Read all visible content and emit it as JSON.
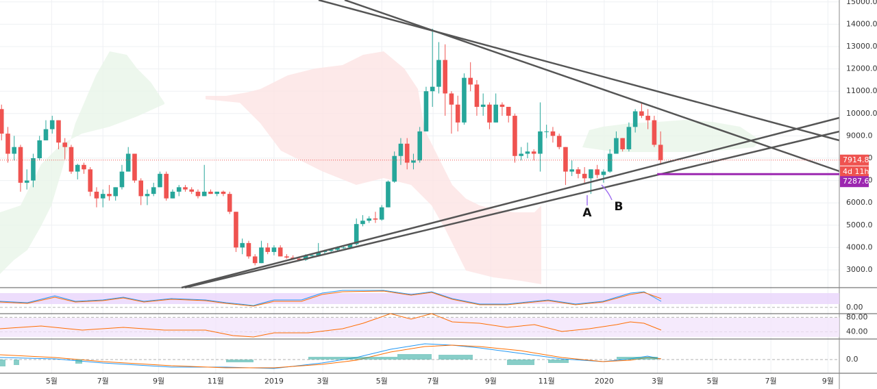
{
  "chart_data": {
    "type": "candlestick",
    "up_color": "#26a69a",
    "down_color": "#ef5350",
    "grid": true,
    "xlim": [
      -0.24,
      132.2
    ],
    "ylim": [
      2202,
      15086
    ],
    "yticks": [
      {
        "value": 3000,
        "label": "3000.0"
      },
      {
        "value": 4000,
        "label": "4000.0"
      },
      {
        "value": 5000,
        "label": "5000.0"
      },
      {
        "value": 6000,
        "label": "6000.0"
      },
      {
        "value": 7000,
        "label": "7000.0"
      },
      {
        "value": 8000,
        "label": "8000.0"
      },
      {
        "value": 9000,
        "label": "9000.0"
      },
      {
        "value": 10000,
        "label": "10000.0"
      },
      {
        "value": 11000,
        "label": "11000.0"
      },
      {
        "value": 12000,
        "label": "12000.0"
      },
      {
        "value": 13000,
        "label": "13000.0"
      },
      {
        "value": 14000,
        "label": "14000.0"
      },
      {
        "value": 15000,
        "label": "15000.0"
      }
    ],
    "xticks": [
      {
        "value": 7.9,
        "label": "5월"
      },
      {
        "value": 16.0,
        "label": "7월"
      },
      {
        "value": 24.8,
        "label": "9월"
      },
      {
        "value": 33.8,
        "label": "11월"
      },
      {
        "value": 43,
        "label": "2019"
      },
      {
        "value": 50.7,
        "label": "3월"
      },
      {
        "value": 60.0,
        "label": "5월"
      },
      {
        "value": 68.1,
        "label": "7월"
      },
      {
        "value": 77.2,
        "label": "9월"
      },
      {
        "value": 86.0,
        "label": "11월"
      },
      {
        "value": 95.1,
        "label": "2020"
      },
      {
        "value": 103.5,
        "label": "3월"
      },
      {
        "value": 112.2,
        "label": "5월"
      },
      {
        "value": 121.4,
        "label": "7월"
      },
      {
        "value": 130.4,
        "label": "9월"
      }
    ],
    "candles": [
      [
        10200,
        10400,
        8800,
        9100
      ],
      [
        9100,
        9400,
        7800,
        8200
      ],
      [
        8200,
        9000,
        7900,
        8500
      ],
      [
        8500,
        8600,
        6500,
        6900
      ],
      [
        6900,
        7500,
        6600,
        7000
      ],
      [
        7000,
        8200,
        6700,
        8000
      ],
      [
        8000,
        9000,
        7900,
        8800
      ],
      [
        8800,
        9700,
        8800,
        9300
      ],
      [
        9300,
        9900,
        9100,
        9700
      ],
      [
        9700,
        9700,
        8400,
        8700
      ],
      [
        8700,
        8900,
        7950,
        8500
      ],
      [
        8500,
        8600,
        7300,
        7400
      ],
      [
        7400,
        7750,
        7050,
        7700
      ],
      [
        7700,
        7800,
        7300,
        7500
      ],
      [
        7500,
        7600,
        6300,
        6500
      ],
      [
        6500,
        6700,
        5800,
        6200
      ],
      [
        6200,
        6600,
        5800,
        6400
      ],
      [
        6400,
        6800,
        6100,
        6300
      ],
      [
        6300,
        6700,
        6100,
        6700
      ],
      [
        6700,
        7700,
        6600,
        7400
      ],
      [
        7400,
        8500,
        7400,
        8200
      ],
      [
        8200,
        8200,
        6900,
        7000
      ],
      [
        7000,
        7100,
        5900,
        6300
      ],
      [
        6300,
        6600,
        5900,
        6400
      ],
      [
        6400,
        6900,
        6300,
        6700
      ],
      [
        6700,
        7400,
        6700,
        7300
      ],
      [
        7300,
        7400,
        6100,
        6200
      ],
      [
        6200,
        6600,
        6200,
        6500
      ],
      [
        6500,
        6800,
        6300,
        6700
      ],
      [
        6700,
        6800,
        6500,
        6600
      ],
      [
        6600,
        6700,
        6400,
        6500
      ],
      [
        6500,
        6600,
        6200,
        6300
      ],
      [
        6300,
        7700,
        6300,
        6500
      ],
      [
        6500,
        6600,
        6400,
        6400
      ],
      [
        6400,
        6500,
        6300,
        6500
      ],
      [
        6500,
        6550,
        6300,
        6400
      ],
      [
        6400,
        6500,
        5500,
        5600
      ],
      [
        5600,
        5600,
        3800,
        4000
      ],
      [
        4000,
        4400,
        3700,
        4200
      ],
      [
        4200,
        4300,
        3500,
        3600
      ],
      [
        3600,
        3700,
        3200,
        3300
      ],
      [
        3300,
        4300,
        3300,
        4000
      ],
      [
        4000,
        4200,
        3700,
        3800
      ],
      [
        3800,
        4100,
        3650,
        4000
      ],
      [
        4000,
        4100,
        3600,
        3600
      ],
      [
        3600,
        3700,
        3500,
        3550
      ],
      [
        3550,
        3650,
        3450,
        3500
      ],
      [
        3500,
        3550,
        3400,
        3450
      ],
      [
        3450,
        3700,
        3400,
        3650
      ],
      [
        3650,
        3700,
        3600,
        3650
      ],
      [
        3650,
        4200,
        3650,
        3800
      ],
      [
        3800,
        3900,
        3700,
        3850
      ],
      [
        3850,
        3950,
        3800,
        3900
      ],
      [
        3900,
        4050,
        3850,
        4000
      ],
      [
        4000,
        4100,
        3950,
        4000
      ],
      [
        4000,
        4200,
        3950,
        4150
      ],
      [
        4150,
        5300,
        4100,
        5050
      ],
      [
        5050,
        5450,
        4950,
        5200
      ],
      [
        5200,
        5400,
        5100,
        5300
      ],
      [
        5300,
        5600,
        5100,
        5250
      ],
      [
        5250,
        5900,
        5200,
        5800
      ],
      [
        5800,
        7000,
        5800,
        6950
      ],
      [
        6950,
        8300,
        6900,
        8100
      ],
      [
        8100,
        8900,
        7700,
        8650
      ],
      [
        8650,
        8900,
        7500,
        7800
      ],
      [
        7800,
        8200,
        7500,
        7900
      ],
      [
        7900,
        9400,
        7800,
        9200
      ],
      [
        9200,
        11200,
        9200,
        11000
      ],
      [
        11000,
        13800,
        10300,
        11200
      ],
      [
        11200,
        13200,
        10900,
        12400
      ],
      [
        12400,
        13100,
        9900,
        10900
      ],
      [
        10900,
        11000,
        9100,
        10400
      ],
      [
        10400,
        10800,
        9200,
        9600
      ],
      [
        9600,
        11800,
        9500,
        11600
      ],
      [
        11600,
        12300,
        11000,
        11300
      ],
      [
        11300,
        11500,
        9900,
        10300
      ],
      [
        10300,
        10900,
        9900,
        10400
      ],
      [
        10400,
        10500,
        9300,
        9600
      ],
      [
        9600,
        10900,
        9600,
        10400
      ],
      [
        10400,
        10500,
        9900,
        10300
      ],
      [
        10300,
        10300,
        9600,
        9900
      ],
      [
        9900,
        10000,
        7800,
        8100
      ],
      [
        8100,
        8500,
        7900,
        8200
      ],
      [
        8200,
        8700,
        8000,
        8300
      ],
      [
        8300,
        8400,
        7900,
        8200
      ],
      [
        8200,
        10500,
        7400,
        9200
      ],
      [
        9200,
        9500,
        8900,
        9200
      ],
      [
        9200,
        9400,
        8700,
        9000
      ],
      [
        9000,
        9100,
        8400,
        8500
      ],
      [
        8500,
        8500,
        6800,
        7400
      ],
      [
        7400,
        7900,
        7200,
        7500
      ],
      [
        7500,
        7600,
        7100,
        7300
      ],
      [
        7300,
        7600,
        6900,
        7100
      ],
      [
        7100,
        7500,
        6400,
        7500
      ],
      [
        7500,
        7700,
        7100,
        7250
      ],
      [
        7250,
        7500,
        6900,
        7400
      ],
      [
        7400,
        8400,
        7350,
        8200
      ],
      [
        8200,
        9200,
        8200,
        8900
      ],
      [
        8900,
        8900,
        8300,
        8400
      ],
      [
        8400,
        9600,
        8300,
        9400
      ],
      [
        9400,
        10200,
        9150,
        10100
      ],
      [
        10100,
        10500,
        9800,
        9900
      ],
      [
        9900,
        10200,
        9300,
        9700
      ],
      [
        9700,
        9900,
        8500,
        8600
      ],
      [
        8600,
        9200,
        7700,
        7914.8
      ]
    ],
    "last_price": 7914.8,
    "countdown": "4d 11h",
    "level": 7287.6,
    "level_color": "#9c27b0",
    "annotations": [
      "A",
      "B"
    ],
    "panes": [
      {
        "ylim": [
          -30,
          95
        ],
        "yticks": [
          {
            "value": 0,
            "label": "0.00"
          }
        ]
      },
      {
        "ylim": [
          20,
          90
        ],
        "yticks": [
          {
            "value": 80,
            "label": "80.00"
          },
          {
            "value": 40,
            "label": "40.00"
          }
        ]
      },
      {
        "ylim": [
          -1,
          1.5
        ],
        "yticks": [
          {
            "value": 0,
            "label": "0.0"
          }
        ]
      }
    ]
  }
}
